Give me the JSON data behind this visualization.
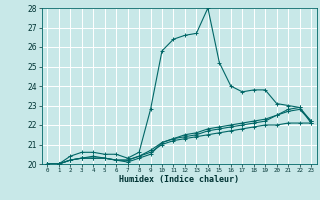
{
  "xlabel": "Humidex (Indice chaleur)",
  "xlim": [
    -0.5,
    23.5
  ],
  "ylim": [
    20,
    28
  ],
  "yticks": [
    20,
    21,
    22,
    23,
    24,
    25,
    26,
    27,
    28
  ],
  "xticks": [
    0,
    1,
    2,
    3,
    4,
    5,
    6,
    7,
    8,
    9,
    10,
    11,
    12,
    13,
    14,
    15,
    16,
    17,
    18,
    19,
    20,
    21,
    22,
    23
  ],
  "bg_color": "#c8e8e8",
  "grid_color": "#ffffff",
  "line_color": "#006666",
  "lines": [
    {
      "x": [
        0,
        1,
        2,
        3,
        4,
        5,
        6,
        7,
        8,
        9,
        10,
        11,
        12,
        13,
        14,
        15,
        16,
        17,
        18,
        19,
        20,
        21,
        22,
        23
      ],
      "y": [
        20,
        20,
        20.4,
        20.6,
        20.6,
        20.5,
        20.5,
        20.3,
        20.6,
        22.8,
        25.8,
        26.4,
        26.6,
        26.7,
        28.0,
        25.2,
        24.0,
        23.7,
        23.8,
        23.8,
        23.1,
        23.0,
        22.9,
        22.1
      ]
    },
    {
      "x": [
        0,
        1,
        2,
        3,
        4,
        5,
        6,
        7,
        8,
        9,
        10,
        11,
        12,
        13,
        14,
        15,
        16,
        17,
        18,
        19,
        20,
        21,
        22,
        23
      ],
      "y": [
        20,
        20,
        20.2,
        20.3,
        20.3,
        20.3,
        20.2,
        20.2,
        20.4,
        20.6,
        21.0,
        21.2,
        21.3,
        21.4,
        21.5,
        21.6,
        21.7,
        21.8,
        21.9,
        22.0,
        22.0,
        22.1,
        22.1,
        22.1
      ]
    },
    {
      "x": [
        0,
        1,
        2,
        3,
        4,
        5,
        6,
        7,
        8,
        9,
        10,
        11,
        12,
        13,
        14,
        15,
        16,
        17,
        18,
        19,
        20,
        21,
        22,
        23
      ],
      "y": [
        20,
        20,
        20.2,
        20.3,
        20.4,
        20.3,
        20.2,
        20.1,
        20.3,
        20.5,
        21.1,
        21.3,
        21.5,
        21.6,
        21.8,
        21.9,
        22.0,
        22.1,
        22.2,
        22.3,
        22.5,
        22.7,
        22.8,
        22.2
      ]
    },
    {
      "x": [
        0,
        1,
        2,
        3,
        4,
        5,
        6,
        7,
        8,
        9,
        10,
        11,
        12,
        13,
        14,
        15,
        16,
        17,
        18,
        19,
        20,
        21,
        22,
        23
      ],
      "y": [
        20,
        20,
        20.2,
        20.3,
        20.3,
        20.3,
        20.2,
        20.2,
        20.4,
        20.7,
        21.1,
        21.3,
        21.4,
        21.5,
        21.7,
        21.8,
        21.9,
        22.0,
        22.1,
        22.2,
        22.5,
        22.8,
        22.9,
        22.2
      ]
    }
  ]
}
